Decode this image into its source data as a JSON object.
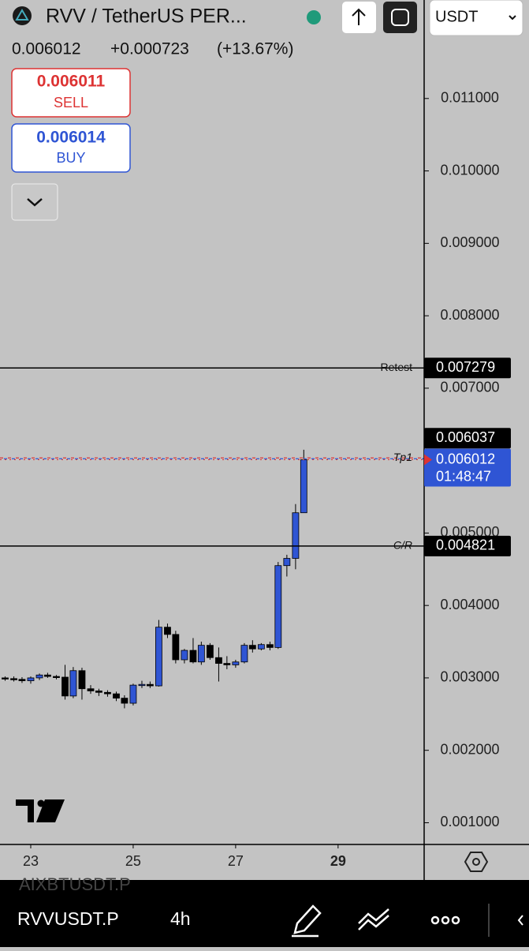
{
  "header": {
    "symbol": "RVV / TetherUS PER...",
    "last": "0.006012",
    "change": "+0.000723",
    "change_pct": "(+13.67%)",
    "sell_price": "0.006011",
    "sell": "SELL",
    "buy_price": "0.006014",
    "buy": "BUY",
    "currency": "USDT"
  },
  "chart_data": {
    "type": "candlestick",
    "x": [
      22.5,
      22.67,
      22.83,
      23,
      23.17,
      23.33,
      23.5,
      23.67,
      23.83,
      24,
      24.17,
      24.33,
      24.5,
      24.67,
      24.83,
      25,
      25.17,
      25.33,
      25.5,
      25.67,
      25.83,
      26,
      26.17,
      26.33,
      26.5,
      26.67,
      26.83,
      27,
      27.17,
      27.33,
      27.5,
      27.67,
      27.83,
      28,
      28.17,
      28.33
    ],
    "open": [
      0.003,
      0.00299,
      0.00298,
      0.00296,
      0.003,
      0.00304,
      0.00302,
      0.00301,
      0.00275,
      0.0031,
      0.00285,
      0.00282,
      0.0028,
      0.00278,
      0.00272,
      0.00265,
      0.0029,
      0.00291,
      0.00289,
      0.0037,
      0.0036,
      0.00325,
      0.00338,
      0.00322,
      0.00345,
      0.00328,
      0.0032,
      0.00318,
      0.00322,
      0.00345,
      0.0034,
      0.00346,
      0.00342,
      0.00455,
      0.00465,
      0.00528
    ],
    "high": [
      0.00302,
      0.00302,
      0.00301,
      0.00302,
      0.00306,
      0.00307,
      0.00304,
      0.00318,
      0.00315,
      0.00314,
      0.0029,
      0.00285,
      0.00283,
      0.00281,
      0.00276,
      0.00292,
      0.00296,
      0.00295,
      0.0038,
      0.00375,
      0.00365,
      0.0034,
      0.00355,
      0.0035,
      0.00348,
      0.00342,
      0.0033,
      0.00325,
      0.00348,
      0.00352,
      0.00348,
      0.0035,
      0.0046,
      0.0047,
      0.0054,
      0.00615
    ],
    "low": [
      0.00296,
      0.00295,
      0.00293,
      0.00292,
      0.00297,
      0.003,
      0.00298,
      0.0027,
      0.00272,
      0.0027,
      0.00278,
      0.00275,
      0.00274,
      0.00268,
      0.00258,
      0.00262,
      0.00286,
      0.00286,
      0.00288,
      0.00355,
      0.0032,
      0.0032,
      0.0032,
      0.00318,
      0.00325,
      0.00295,
      0.00312,
      0.00314,
      0.0032,
      0.00335,
      0.00338,
      0.00338,
      0.0034,
      0.0044,
      0.0045,
      0.00528
    ],
    "close": [
      0.00299,
      0.00298,
      0.00296,
      0.003,
      0.00304,
      0.00302,
      0.00301,
      0.00275,
      0.0031,
      0.00285,
      0.00282,
      0.0028,
      0.00278,
      0.00272,
      0.00265,
      0.0029,
      0.00291,
      0.00289,
      0.0037,
      0.0036,
      0.00325,
      0.00338,
      0.00322,
      0.00345,
      0.00328,
      0.0032,
      0.00318,
      0.00322,
      0.00345,
      0.0034,
      0.00346,
      0.00342,
      0.00455,
      0.00465,
      0.00528,
      0.006012
    ],
    "up_color": "#2f55d4",
    "down_color": "#000000",
    "xlim": [
      22.4,
      30.68
    ],
    "xticks": [
      23,
      25,
      27,
      29
    ],
    "ylim": [
      0.0007,
      0.01236
    ],
    "yticks": [
      {
        "value": 0.001,
        "label": "0.001000"
      },
      {
        "value": 0.002,
        "label": "0.002000"
      },
      {
        "value": 0.003,
        "label": "0.003000"
      },
      {
        "value": 0.004,
        "label": "0.004000"
      },
      {
        "value": 0.005,
        "label": "0.005000"
      },
      {
        "value": 0.007,
        "label": "0.007000"
      },
      {
        "value": 0.008,
        "label": "0.008000"
      },
      {
        "value": 0.009,
        "label": "0.009000"
      },
      {
        "value": 0.01,
        "label": "0.010000"
      },
      {
        "value": 0.011,
        "label": "0.011000"
      }
    ],
    "hlines": [
      {
        "name": "Retest",
        "value": 0.007279
      },
      {
        "name": "Tp1",
        "value": 0.006037
      },
      {
        "name": "C/R",
        "value": 0.004821
      }
    ],
    "last_price": 0.006012,
    "countdown": "01:48:47"
  },
  "footer": {
    "other_symbol": "AIXBTUSDT.P",
    "symbol": "RVVUSDT.P",
    "interval": "4h"
  }
}
